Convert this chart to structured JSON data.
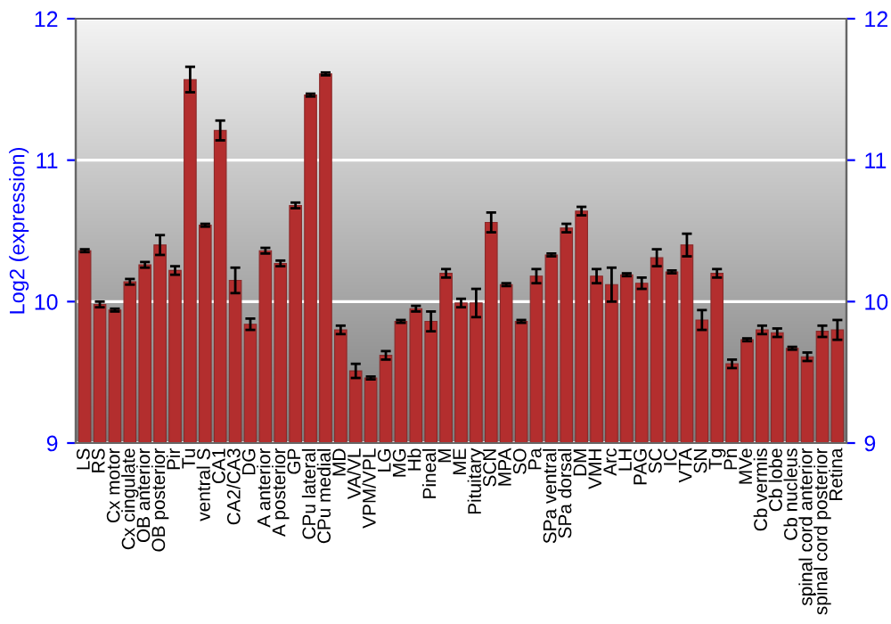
{
  "chart_data": {
    "type": "bar",
    "ylabel": "Log2 (expression)",
    "categories": [
      "LS",
      "RS",
      "Cx motor",
      "Cx cingulate",
      "OB anterior",
      "OB posterior",
      "Pir",
      "Tu",
      "ventral S",
      "CA1",
      "CA2/CA3",
      "DG",
      "A anterior",
      "A posterior",
      "GP",
      "CPu lateral",
      "CPu medial",
      "MD",
      "VA/VL",
      "VPM/VPL",
      "LG",
      "MG",
      "Hb",
      "Pineal",
      "M",
      "ME",
      "Pituitary",
      "SCN",
      "MPA",
      "SO",
      "Pa",
      "SPa ventral",
      "SPa dorsal",
      "DM",
      "VMH",
      "Arc",
      "LH",
      "PAG",
      "SC",
      "IC",
      "VTA",
      "SN",
      "Tg",
      "Pn",
      "MVe",
      "Cb vermis",
      "Cb lobe",
      "Cb nucleus",
      "spinal cord anterior",
      "spinal cord posterior",
      "Retina"
    ],
    "series": [
      {
        "color": "#b32e2e",
        "values": [
          10.36,
          9.98,
          9.94,
          10.14,
          10.26,
          10.4,
          10.22,
          11.57,
          10.54,
          11.21,
          10.15,
          9.84,
          10.36,
          10.27,
          10.68,
          11.46,
          11.61,
          9.8,
          9.51,
          9.46,
          9.62,
          9.86,
          9.95,
          9.86,
          10.2,
          9.99,
          9.99,
          10.56,
          10.12,
          9.86,
          10.18,
          10.33,
          10.52,
          10.64,
          10.18,
          10.12,
          10.19,
          10.13,
          10.31,
          10.21,
          10.4,
          9.87,
          10.2,
          9.56,
          9.73,
          9.8,
          9.78,
          9.67,
          9.61,
          9.79,
          9.8
        ],
        "errors": [
          0.01,
          0.02,
          0.01,
          0.02,
          0.02,
          0.07,
          0.03,
          0.09,
          0.01,
          0.07,
          0.09,
          0.04,
          0.02,
          0.02,
          0.02,
          0.01,
          0.01,
          0.03,
          0.05,
          0.01,
          0.03,
          0.01,
          0.02,
          0.07,
          0.03,
          0.03,
          0.1,
          0.07,
          0.01,
          0.01,
          0.05,
          0.01,
          0.03,
          0.03,
          0.05,
          0.12,
          0.01,
          0.04,
          0.06,
          0.01,
          0.08,
          0.07,
          0.03,
          0.03,
          0.01,
          0.03,
          0.03,
          0.01,
          0.03,
          0.04,
          0.07
        ]
      }
    ],
    "ylim": [
      9,
      12
    ],
    "yticks": [
      9,
      10,
      11,
      12
    ],
    "y2lim": [
      9,
      12
    ],
    "y2ticks": [
      9,
      10,
      11,
      12
    ],
    "grid": "y",
    "legend": false
  }
}
